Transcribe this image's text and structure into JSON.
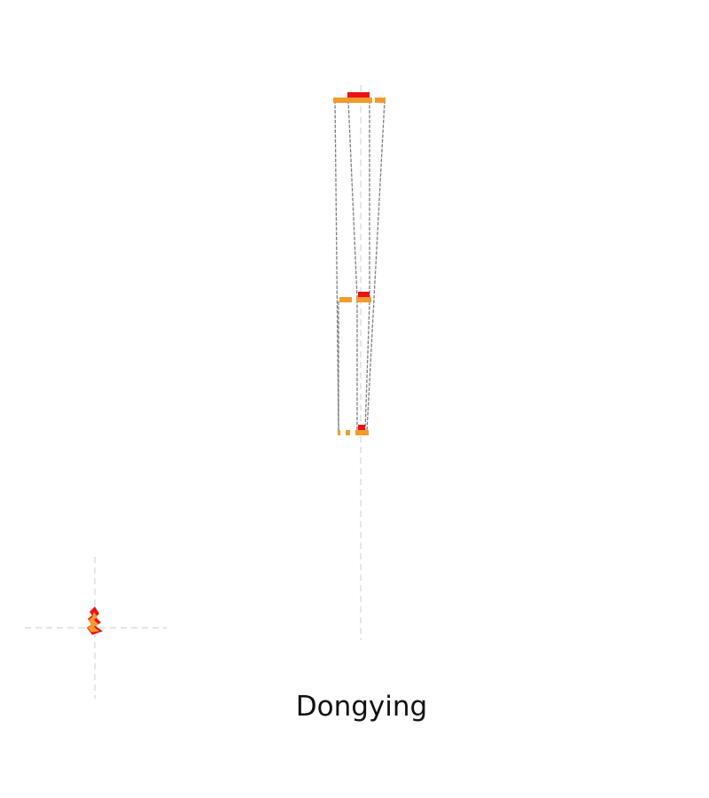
{
  "caption": "Dongying",
  "colors": {
    "bar_orange": "#f39a2d",
    "bar_red": "#ee1111",
    "connector_gray": "#7f7f7f",
    "guide_gray": "#cccccc"
  }
}
